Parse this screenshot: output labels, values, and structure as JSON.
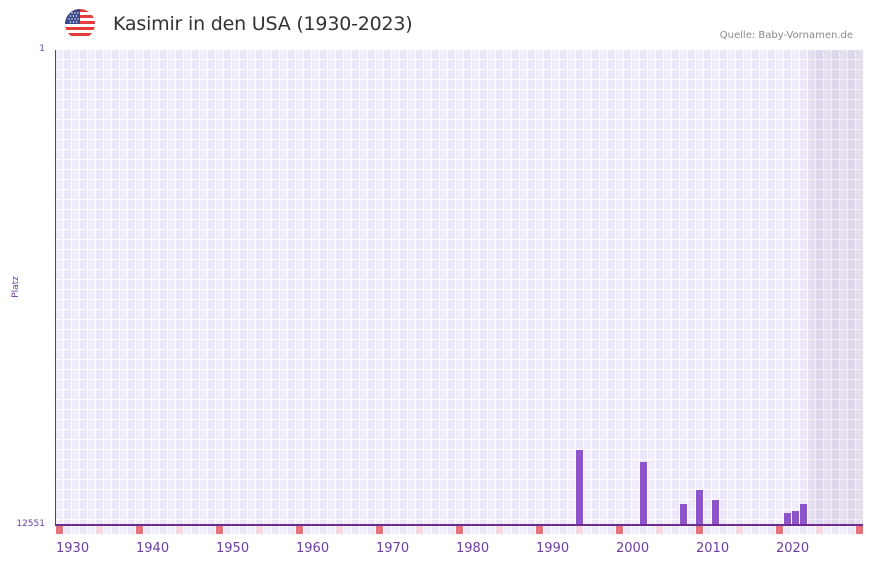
{
  "header": {
    "title": "Kasimir in den USA (1930-2023)",
    "flag_icon": "us-flag-icon",
    "source": "Quelle: Baby-Vornamen.de"
  },
  "colors": {
    "bar": "#8c55c9",
    "axis": "#6a2c91",
    "decade_tick": "#e5717b",
    "half_decade_tick": "#f6d8df",
    "tick_a": "#f1edfb",
    "tick_b": "#ebe6f8",
    "label": "#6b3fa0"
  },
  "chart_data": {
    "type": "bar",
    "title": "Kasimir in den USA (1930-2023)",
    "xlabel": "",
    "ylabel": "Platz",
    "y_inverted": true,
    "ylim": [
      1,
      12551
    ],
    "y_tick_labels": [
      "1",
      "12551"
    ],
    "x_range": [
      1930,
      2030
    ],
    "data_range": [
      1930,
      2023
    ],
    "x_tick_labels": [
      "1930",
      "1940",
      "1950",
      "1960",
      "1970",
      "1980",
      "1990",
      "2000",
      "2010",
      "2020"
    ],
    "grid": true,
    "legend": null,
    "categories": [
      "1995",
      "2003",
      "2008",
      "2010",
      "2012",
      "2021",
      "2022",
      "2023"
    ],
    "values": [
      10569,
      10886,
      11996,
      11626,
      11890,
      12234,
      12181,
      11996
    ],
    "points": [
      {
        "year": 1995,
        "rank": 10569
      },
      {
        "year": 2003,
        "rank": 10886
      },
      {
        "year": 2008,
        "rank": 11996
      },
      {
        "year": 2010,
        "rank": 11626
      },
      {
        "year": 2012,
        "rank": 11890
      },
      {
        "year": 2021,
        "rank": 12234
      },
      {
        "year": 2022,
        "rank": 12181
      },
      {
        "year": 2023,
        "rank": 11996
      }
    ]
  }
}
